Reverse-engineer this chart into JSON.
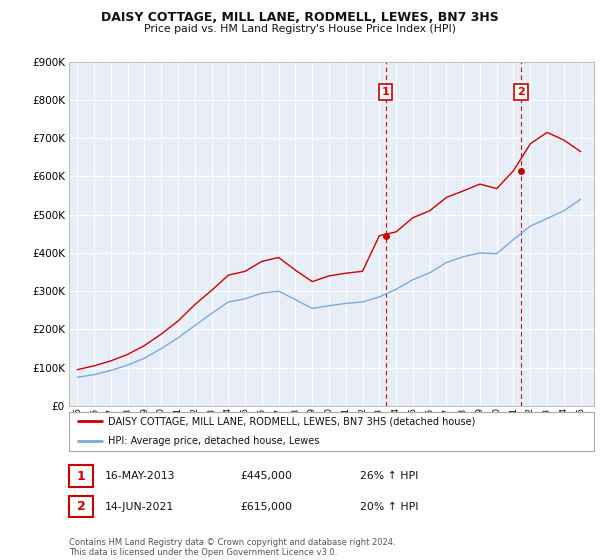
{
  "title": "DAISY COTTAGE, MILL LANE, RODMELL, LEWES, BN7 3HS",
  "subtitle": "Price paid vs. HM Land Registry's House Price Index (HPI)",
  "ylim": [
    0,
    900000
  ],
  "legend_line1": "DAISY COTTAGE, MILL LANE, RODMELL, LEWES, BN7 3HS (detached house)",
  "legend_line2": "HPI: Average price, detached house, Lewes",
  "annotation1_label": "1",
  "annotation1_date": "16-MAY-2013",
  "annotation1_price": "£445,000",
  "annotation1_hpi": "26% ↑ HPI",
  "annotation2_label": "2",
  "annotation2_date": "14-JUN-2021",
  "annotation2_price": "£615,000",
  "annotation2_hpi": "20% ↑ HPI",
  "footer": "Contains HM Land Registry data © Crown copyright and database right 2024.\nThis data is licensed under the Open Government Licence v3.0.",
  "red_color": "#cc0000",
  "blue_color": "#7aaadd",
  "background_plot": "#e8eef8",
  "grid_color": "#ffffff",
  "annotation_box_color": "#cc0000",
  "years_x": [
    1995,
    1996,
    1997,
    1998,
    1999,
    2000,
    2001,
    2002,
    2003,
    2004,
    2005,
    2006,
    2007,
    2008,
    2009,
    2010,
    2011,
    2012,
    2013,
    2014,
    2015,
    2016,
    2017,
    2018,
    2019,
    2020,
    2021,
    2022,
    2023,
    2024,
    2025
  ],
  "hpi_values": [
    75000,
    82000,
    93000,
    107000,
    125000,
    150000,
    178000,
    210000,
    242000,
    272000,
    280000,
    295000,
    300000,
    278000,
    255000,
    262000,
    268000,
    272000,
    285000,
    305000,
    330000,
    348000,
    375000,
    390000,
    400000,
    398000,
    435000,
    470000,
    490000,
    510000,
    540000
  ],
  "red_values": [
    95000,
    105000,
    118000,
    135000,
    158000,
    188000,
    222000,
    265000,
    302000,
    342000,
    352000,
    378000,
    388000,
    355000,
    325000,
    340000,
    347000,
    352000,
    445000,
    455000,
    492000,
    510000,
    545000,
    562000,
    580000,
    568000,
    615000,
    685000,
    715000,
    695000,
    665000
  ],
  "sale1_x": 2013.37,
  "sale1_y": 445000,
  "sale2_x": 2021.45,
  "sale2_y": 615000,
  "vline1_x": 2013.37,
  "vline2_x": 2021.45,
  "xlim_left": 1994.5,
  "xlim_right": 2025.8
}
